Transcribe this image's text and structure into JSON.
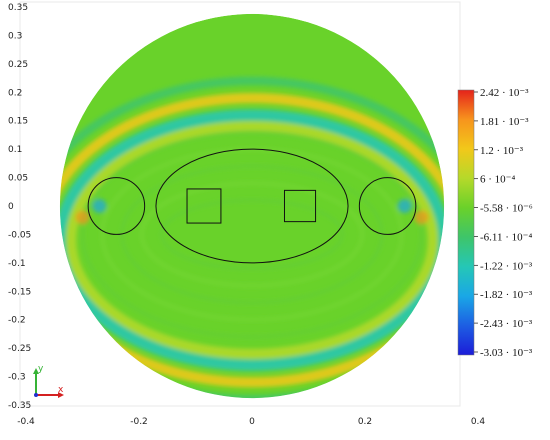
{
  "chart_data": {
    "type": "heatmap",
    "title": "",
    "xlabel": "",
    "ylabel": "",
    "xlim": [
      -0.4,
      0.4
    ],
    "ylim": [
      -0.35,
      0.35
    ],
    "x_ticks": [
      "-0.4",
      "-0.2",
      "0",
      "0.2",
      "0.4"
    ],
    "y_ticks": [
      "0.35",
      "0.3",
      "0.25",
      "0.2",
      "0.15",
      "0.1",
      "0.05",
      "0",
      "-0.05",
      "-0.1",
      "-0.15",
      "-0.2",
      "-0.25",
      "-0.3",
      "-0.35"
    ],
    "domain": {
      "shape": "circle",
      "center": [
        0,
        0
      ],
      "radius": 0.34
    },
    "outlines": [
      {
        "shape": "ellipse",
        "center": [
          0,
          0
        ],
        "rx": 0.17,
        "ry": 0.1
      },
      {
        "shape": "ellipse",
        "center": [
          -0.24,
          0
        ],
        "rx": 0.05,
        "ry": 0.05
      },
      {
        "shape": "ellipse",
        "center": [
          0.24,
          0
        ],
        "rx": 0.05,
        "ry": 0.05
      },
      {
        "shape": "square",
        "center": [
          -0.085,
          0
        ],
        "size": 0.06
      },
      {
        "shape": "square",
        "center": [
          0.085,
          0
        ],
        "size": 0.055
      }
    ],
    "colorbar": {
      "labels": [
        "2.42 · 10⁻³",
        "1.81 · 10⁻³",
        "1.2 · 10⁻³",
        "6 · 10⁻⁴",
        "-5.58 · 10⁻⁶",
        "-6.11 · 10⁻⁴",
        "-1.22 · 10⁻³",
        "-1.82 · 10⁻³",
        "-2.43 · 10⁻³",
        "-3.03 · 10⁻³"
      ],
      "colors": [
        "#e5231b",
        "#f7941d",
        "#f2c81a",
        "#b5d92a",
        "#6ad12a",
        "#3ec56a",
        "#25c7b6",
        "#1aa7e6",
        "#1d5ee3",
        "#1c1cd8"
      ]
    },
    "field_bands": [
      {
        "radius": 0.2,
        "width": 0.018,
        "value": 0.0006
      },
      {
        "radius": 0.22,
        "width": 0.02,
        "value": -0.0012
      },
      {
        "radius": 0.25,
        "width": 0.018,
        "value": 0.0012
      },
      {
        "radius": 0.28,
        "width": 0.015,
        "value": -0.0006
      }
    ]
  },
  "axes_indicator": {
    "x_label": "x",
    "y_label": "y"
  }
}
